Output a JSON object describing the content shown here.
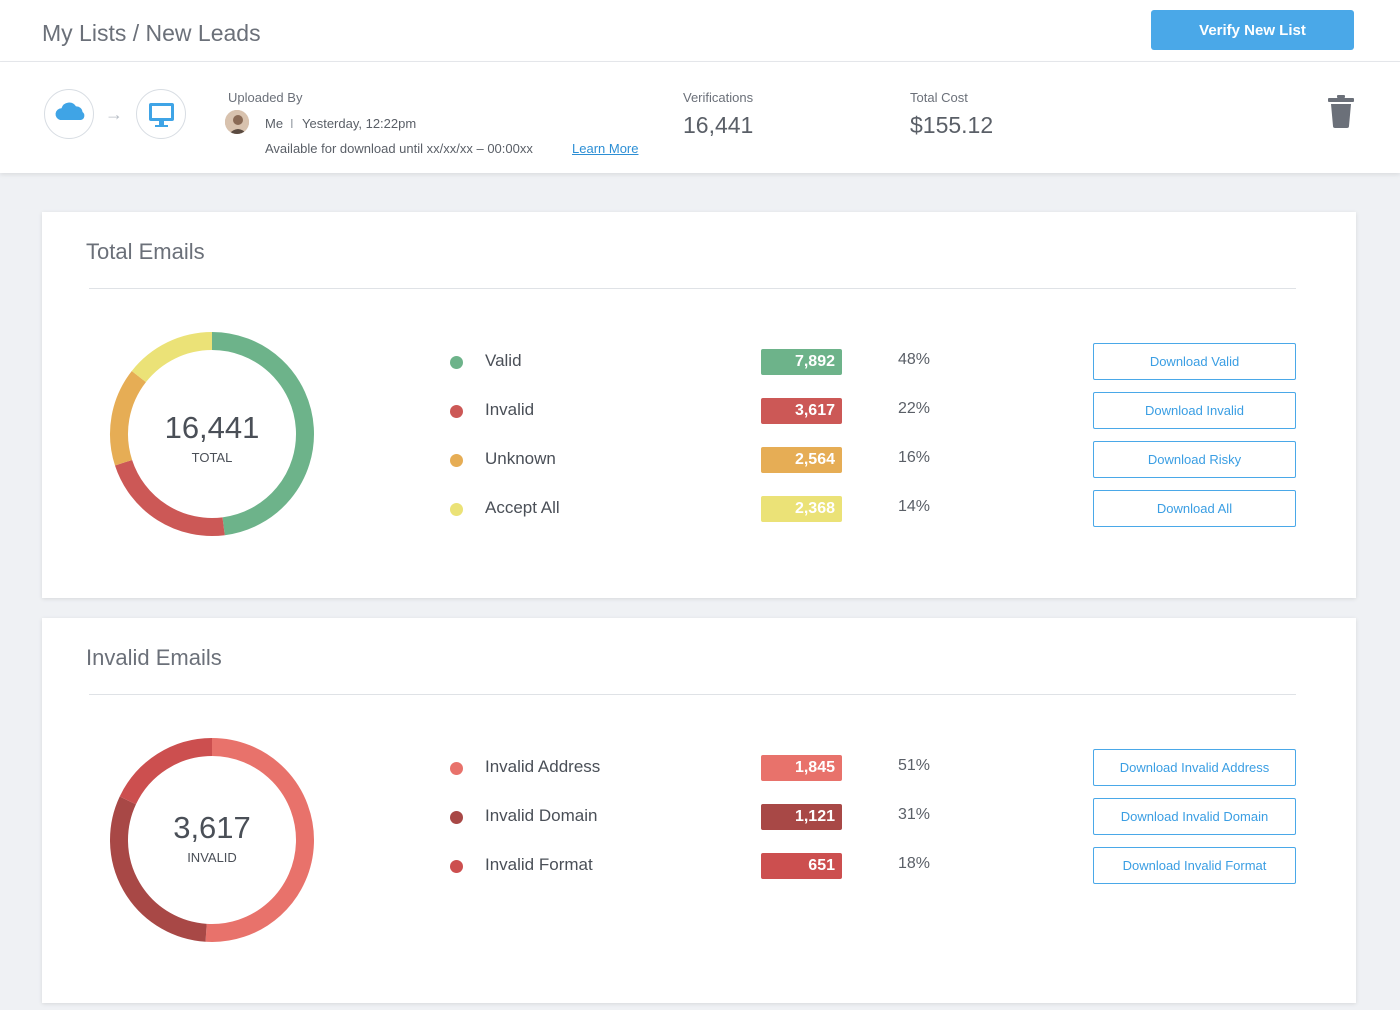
{
  "header": {
    "breadcrumb": "My Lists / New Leads",
    "verify_button": "Verify New List"
  },
  "upload": {
    "source_icon": "cloud-icon",
    "destination_icon": "monitor-icon",
    "arrow": "→",
    "uploaded_by_label": "Uploaded By",
    "user": "Me",
    "separator": "I",
    "timestamp": "Yesterday, 12:22pm",
    "availability": "Available for download until xx/xx/xx – 00:00xx",
    "learn_more": "Learn More",
    "verifications_label": "Verifications",
    "verifications_value": "16,441",
    "total_cost_label": "Total Cost",
    "total_cost_value": "$155.12",
    "delete_icon": "trash-icon"
  },
  "total_emails": {
    "title": "Total Emails",
    "total": "16,441",
    "total_label": "TOTAL",
    "rows": [
      {
        "label": "Valid",
        "count": "7,892",
        "percent": "48%",
        "color": "#6db38a",
        "button": "Download Valid"
      },
      {
        "label": "Invalid",
        "count": "3,617",
        "percent": "22%",
        "color": "#cc5856",
        "button": "Download Invalid"
      },
      {
        "label": "Unknown",
        "count": "2,564",
        "percent": "16%",
        "color": "#e6ad55",
        "button": "Download Risky"
      },
      {
        "label": "Accept All",
        "count": "2,368",
        "percent": "14%",
        "color": "#ebe277",
        "button": "Download All"
      }
    ]
  },
  "invalid_emails": {
    "title": "Invalid Emails",
    "total": "3,617",
    "total_label": "INVALID",
    "rows": [
      {
        "label": "Invalid Address",
        "count": "1,845",
        "percent": "51%",
        "color": "#e8726b",
        "button": "Download Invalid Address"
      },
      {
        "label": "Invalid Domain",
        "count": "1,121",
        "percent": "31%",
        "color": "#a84846",
        "button": "Download Invalid Domain"
      },
      {
        "label": "Invalid Format",
        "count": "651",
        "percent": "18%",
        "color": "#cc4f4f",
        "button": "Download Invalid Format"
      }
    ]
  }
}
